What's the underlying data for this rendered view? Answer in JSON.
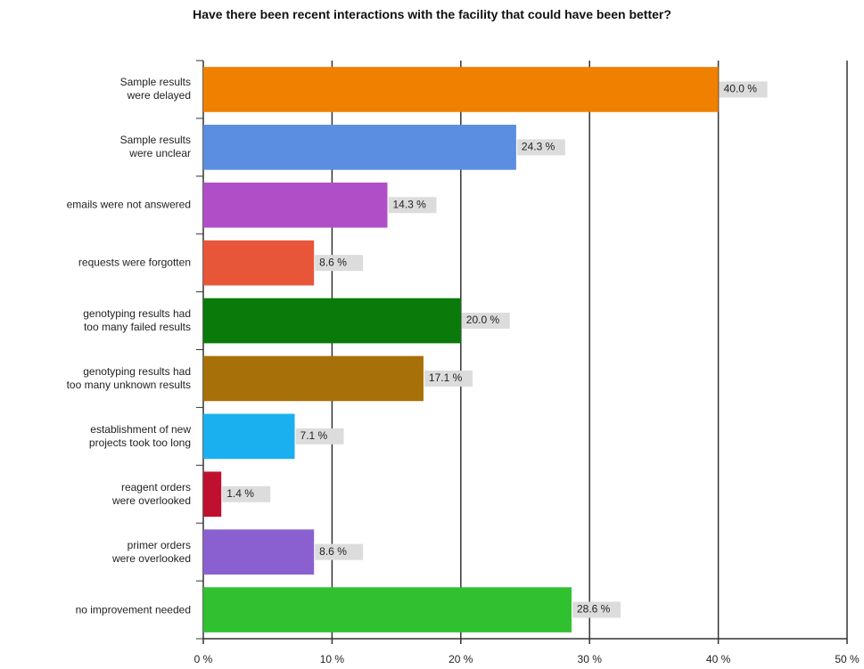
{
  "chart_data": {
    "type": "barh",
    "title": "Have there been recent interactions with the facility that could have been better?",
    "categories": [
      "Sample results\nwere delayed",
      "Sample results\nwere unclear",
      "emails were not answered",
      "requests were forgotten",
      "genotyping results had\ntoo many failed results",
      "genotyping results had\ntoo many unknown results",
      "establishment of new\nprojects took too long",
      "reagent orders\nwere overlooked",
      "primer orders\nwere overlooked",
      "no improvement needed"
    ],
    "values": [
      40.0,
      24.3,
      14.3,
      8.6,
      20.0,
      17.1,
      7.1,
      1.4,
      8.6,
      28.6
    ],
    "value_labels": [
      "40.0 %",
      "24.3 %",
      "14.3 %",
      "8.6 %",
      "20.0 %",
      "17.1 %",
      "7.1 %",
      "1.4 %",
      "8.6 %",
      "28.6 %"
    ],
    "colors": [
      "#f08000",
      "#5b8ee0",
      "#b04ec8",
      "#e8563a",
      "#0a7a0a",
      "#a87008",
      "#1ab0f0",
      "#c01030",
      "#8a60d0",
      "#30c030"
    ],
    "xlim": [
      0,
      50
    ],
    "xticks": [
      {
        "value": 0,
        "label": "0 %"
      },
      {
        "value": 10,
        "label": "10 %"
      },
      {
        "value": 20,
        "label": "20 %"
      },
      {
        "value": 30,
        "label": "30 %"
      },
      {
        "value": 40,
        "label": "40 %"
      },
      {
        "value": 50,
        "label": "50 %"
      }
    ],
    "grid": true
  }
}
